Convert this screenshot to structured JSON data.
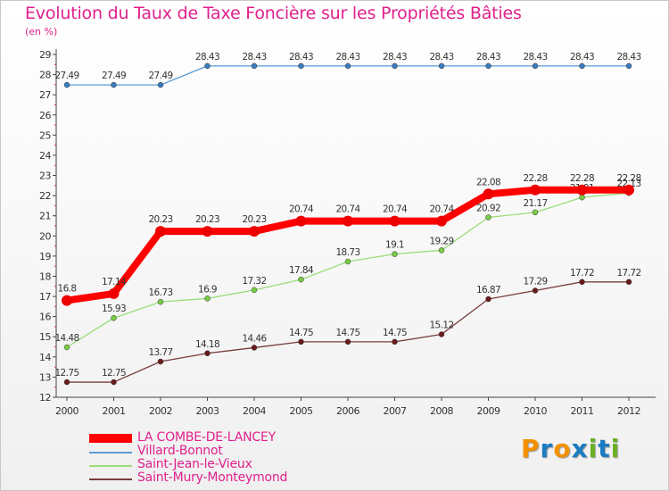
{
  "header": {
    "title": "Evolution du Taux de Taxe Foncière sur les Propriétés Bâties",
    "subtitle": "(en %)"
  },
  "logo": {
    "letters": [
      "P",
      "r",
      "o",
      "x",
      "i",
      "t",
      "i"
    ],
    "colors": [
      "#f29100",
      "#1a7cc1",
      "#f29100",
      "#1a7cc1",
      "#6ab023",
      "#1a7cc1",
      "#6ab023"
    ]
  },
  "chart_data": {
    "type": "line",
    "title": "Evolution du Taux de Taxe Foncière sur les Propriétés Bâties",
    "ylabel": "(en %)",
    "x": [
      "2000",
      "2001",
      "2002",
      "2003",
      "2004",
      "2005",
      "2006",
      "2007",
      "2008",
      "2009",
      "2010",
      "2011",
      "2012"
    ],
    "ylim": [
      12,
      29
    ],
    "yticks": [
      12,
      13,
      14,
      15,
      16,
      17,
      18,
      19,
      20,
      21,
      22,
      23,
      24,
      25,
      26,
      27,
      28,
      29
    ],
    "grid": false,
    "legend_position": "bottom-left",
    "series": [
      {
        "name": "Villard-Bonnot",
        "color": "#5b9bd5",
        "marker_color": "#3a7bc0",
        "width": "thin",
        "values": [
          27.49,
          27.49,
          27.49,
          28.43,
          28.43,
          28.43,
          28.43,
          28.43,
          28.43,
          28.43,
          28.43,
          28.43,
          28.43
        ],
        "labels": [
          "27.49",
          "27.49",
          "27.49",
          "28.43",
          "28.43",
          "28.43",
          "28.43",
          "28.43",
          "28.43",
          "28.43",
          "28.43",
          "28.43",
          "28.43"
        ]
      },
      {
        "name": "Saint-Jean-le-Vieux",
        "color": "#99dd77",
        "marker_color": "#77cc44",
        "width": "thin",
        "values": [
          14.48,
          15.93,
          16.73,
          16.9,
          17.32,
          17.84,
          18.73,
          19.1,
          19.29,
          20.92,
          21.17,
          21.91,
          22.13
        ],
        "labels": [
          "14.48",
          "15.93",
          "16.73",
          "16.9",
          "17.32",
          "17.84",
          "18.73",
          "19.1",
          "19.29",
          "20.92",
          "21.17",
          "21.91",
          "22.13"
        ]
      },
      {
        "name": "Saint-Mury-Monteymond",
        "color": "#7a3b3b",
        "marker_color": "#6a1a1a",
        "width": "thin",
        "values": [
          12.75,
          12.75,
          13.77,
          14.18,
          14.46,
          14.75,
          14.75,
          14.75,
          15.12,
          16.87,
          17.29,
          17.72,
          17.72
        ],
        "labels": [
          "12.75",
          "12.75",
          "13.77",
          "14.18",
          "14.46",
          "14.75",
          "14.75",
          "14.75",
          "15.12",
          "16.87",
          "17.29",
          "17.72",
          "17.72"
        ]
      },
      {
        "name": "LA COMBE-DE-LANCEY",
        "color": "#ff0000",
        "marker_color": "#ee0000",
        "width": "thick",
        "values": [
          16.8,
          17.14,
          20.23,
          20.23,
          20.23,
          20.74,
          20.74,
          20.74,
          20.74,
          22.08,
          22.28,
          22.28,
          22.28
        ],
        "labels": [
          "16.8",
          "17.14",
          "20.23",
          "20.23",
          "20.23",
          "20.74",
          "20.74",
          "20.74",
          "20.74",
          "22.08",
          "22.28",
          "22.28",
          "22.28"
        ]
      }
    ],
    "legend": [
      {
        "name": "LA COMBE-DE-LANCEY",
        "color": "#ff0000",
        "width": "thick"
      },
      {
        "name": "Villard-Bonnot",
        "color": "#5b9bd5",
        "width": "thin"
      },
      {
        "name": "Saint-Jean-le-Vieux",
        "color": "#99dd77",
        "width": "thin"
      },
      {
        "name": "Saint-Mury-Monteymond",
        "color": "#7a3b3b",
        "width": "thin"
      }
    ]
  }
}
